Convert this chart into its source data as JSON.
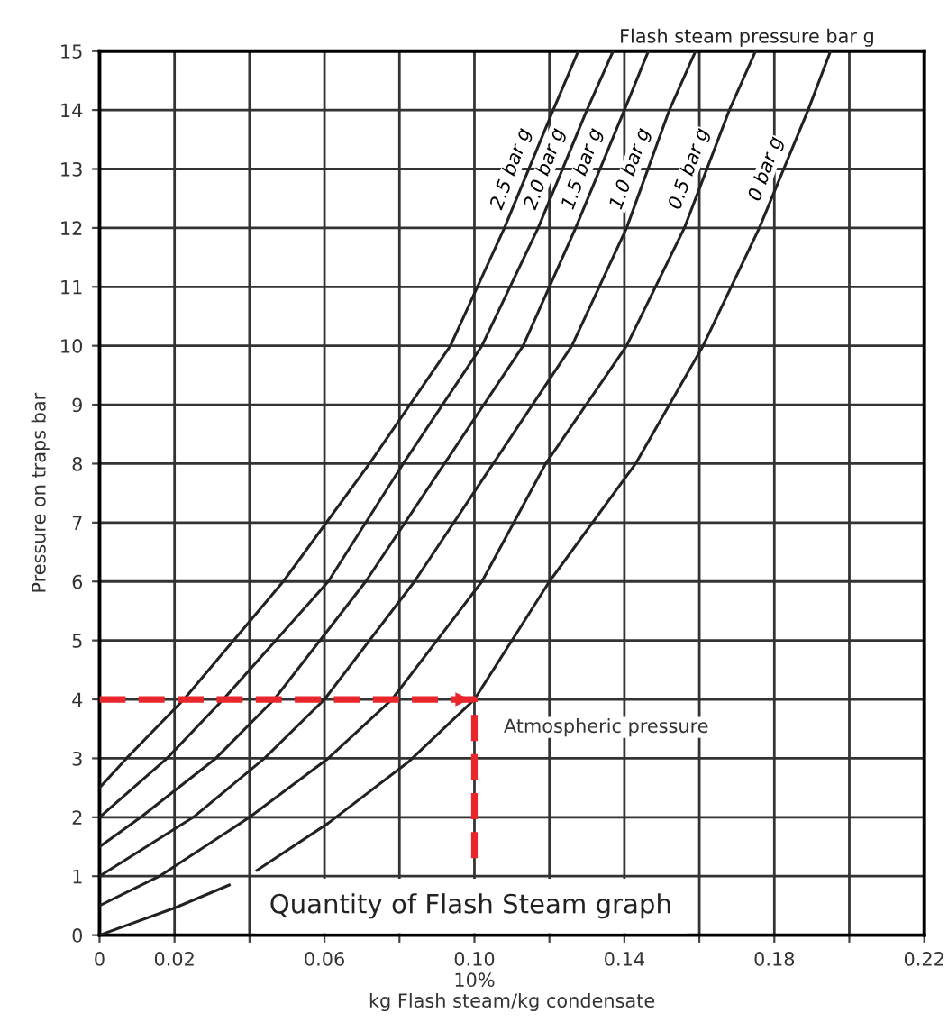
{
  "chart_data": {
    "type": "line",
    "title": "Quantity of Flash Steam graph",
    "xlabel": "kg Flash steam/kg condensate",
    "ylabel": "Pressure on traps bar",
    "xlim": [
      0,
      0.22
    ],
    "ylim": [
      0,
      15
    ],
    "xticks": [
      0,
      0.02,
      {
        "value": 0.04,
        "label": null
      },
      0.06,
      {
        "value": 0.08,
        "label": null
      },
      {
        "value": 0.1,
        "label": "0.10\n10%"
      },
      {
        "value": 0.12,
        "label": null
      },
      0.14,
      {
        "value": 0.16,
        "label": null
      },
      0.18,
      {
        "value": 0.2,
        "label": null
      },
      0.22
    ],
    "yticks": [
      0,
      1,
      2,
      3,
      4,
      5,
      6,
      7,
      8,
      9,
      10,
      11,
      12,
      13,
      14,
      15
    ],
    "grid": true,
    "marker": "none",
    "line_style": "solid",
    "series": [
      {
        "name": "2.5 bar g",
        "color": "#222222",
        "x": [
          0,
          0.0072,
          0.0225,
          0.049,
          0.072,
          0.0936,
          0.108,
          0.121,
          0.1277
        ],
        "values": [
          2.5,
          3,
          4,
          6,
          8,
          10,
          12,
          14,
          15
        ]
      },
      {
        "name": "2.0 bar g",
        "color": "#222222",
        "x": [
          0,
          0.018,
          0.033,
          0.061,
          0.081,
          0.102,
          0.117,
          0.13,
          0.137
        ],
        "values": [
          2,
          3,
          4,
          6,
          8,
          10,
          12,
          14,
          15
        ]
      },
      {
        "name": "1.5 bar g",
        "color": "#222222",
        "x": [
          0,
          0.011,
          0.031,
          0.0466,
          0.071,
          0.092,
          0.113,
          0.127,
          0.14,
          0.1464
        ],
        "values": [
          1.5,
          2,
          3,
          4,
          6,
          8,
          10,
          12,
          14,
          15
        ]
      },
      {
        "name": "1.0 bar g",
        "color": "#222222",
        "x": [
          0,
          0.025,
          0.044,
          0.06,
          0.084,
          0.105,
          0.126,
          0.1406,
          0.152,
          0.159
        ],
        "values": [
          1,
          2,
          3,
          4,
          6,
          8,
          10,
          12,
          14,
          15
        ]
      },
      {
        "name": "0.5 bar g",
        "color": "#222222",
        "x": [
          0,
          0.016,
          0.04,
          0.061,
          0.078,
          0.102,
          0.119,
          0.1406,
          0.156,
          0.168,
          0.175
        ],
        "values": [
          0.5,
          1,
          2,
          3,
          4,
          6,
          8,
          10,
          12,
          14,
          15
        ]
      },
      {
        "name": "0 bar g",
        "color": "#222222",
        "x": [
          0,
          0.02,
          0.0346,
          0.038,
          0.042,
          0.061,
          0.0826,
          0.1,
          0.12,
          0.143,
          0.161,
          0.176,
          0.189,
          0.195
        ],
        "values": [
          0,
          0.46,
          0.85,
          null,
          1.1,
          1.9,
          2.95,
          4,
          6,
          8,
          10,
          12,
          14,
          15
        ]
      },
      {
        "color": "#e8262b",
        "line_style": "dashed",
        "x": [
          0,
          0.1,
          0.1
        ],
        "values": [
          4,
          4,
          1.3
        ]
      }
    ],
    "annotations": [
      "Flash steam pressure bar g",
      "Atmospheric pressure"
    ]
  }
}
